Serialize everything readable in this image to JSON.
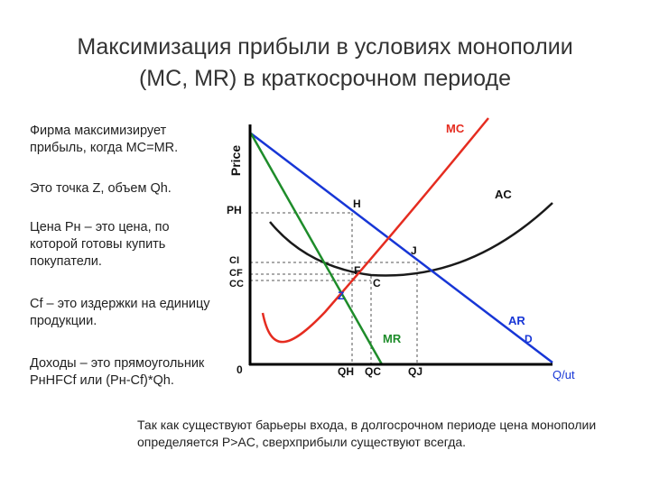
{
  "title_line1": "Максимизация прибыли в условиях монополии",
  "title_line2": "(MC, MR) в краткосрочном периоде",
  "paragraphs": [
    "Фирма максимизирует прибыль, когда MC=MR.",
    "Это точка Z, объем Qh.",
    "Цена Pн – это цена, по которой готовы купить покупатели.",
    "Cf – это издержки на единицу продукции.",
    "Доходы – это прямоугольник PнHFCf или (Pн-Cf)*Qh."
  ],
  "footer": "Так как существуют барьеры входа, в долгосрочном периоде цена монополии определяется P>AC, сверхприбыли существуют всегда.",
  "diagram": {
    "y_axis_label": "Price",
    "x_axis_label": "Q/ut",
    "origin": "0",
    "price_labels": {
      "ph": "PH",
      "ci": "CI",
      "cf": "CF",
      "cc": "CC"
    },
    "qty_labels": {
      "qh": "QH",
      "qc": "QC",
      "qj": "QJ"
    },
    "point_labels": {
      "h": "H",
      "j": "J",
      "f": "F",
      "c": "C",
      "z": "Z",
      "d": "D"
    },
    "curve_labels": {
      "mc": "MC",
      "ac": "AC",
      "ar": "AR",
      "mr": "MR"
    },
    "colors": {
      "mc": "#e52c20",
      "ar": "#1736d6",
      "mr": "#1e8c2a",
      "ac": "#1a1a1a",
      "axes": "#000000",
      "guides": "#555555"
    }
  }
}
